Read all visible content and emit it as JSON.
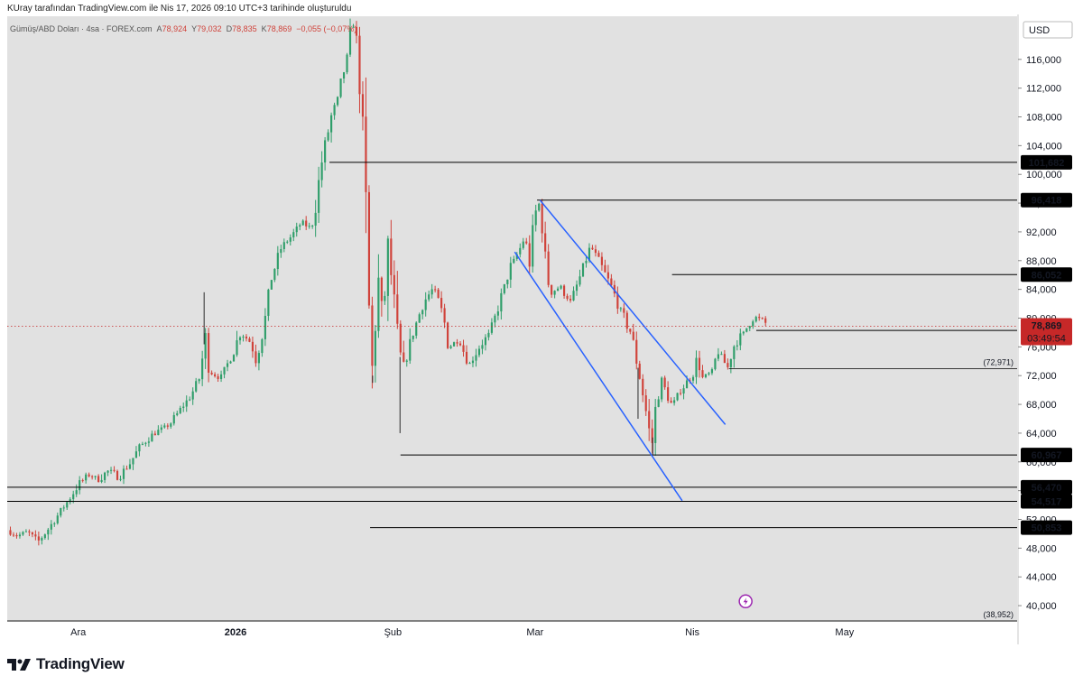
{
  "header": {
    "title": "KUray tarafından TradingView.com ile Nis 17, 2026 09:10 UTC+3 tarihinde oluşturuldu"
  },
  "legend": {
    "symbol": "Gümüş/ABD Doları · 4sa · FOREX.com",
    "open_label": "A",
    "open": "78,924",
    "high_label": "Y",
    "high": "79,032",
    "low_label": "D",
    "low": "78,835",
    "close_label": "K",
    "close": "78,869",
    "change": "−0,055 (−0,07%)"
  },
  "footer": {
    "brand": "TradingView"
  },
  "colors": {
    "background": "#e1e1e1",
    "up": "#2f9e6a",
    "down": "#d0423a",
    "channel": "#2962ff",
    "current_price": "#c62828",
    "level_line": "#000000"
  },
  "chart_data": {
    "type": "candlestick",
    "title": "Gümüş/ABD Doları · 4sa · FOREX.com",
    "currency": "USD",
    "ylim": [
      38,
      122
    ],
    "yticks": [
      40000,
      44000,
      48000,
      52000,
      56000,
      60000,
      64000,
      68000,
      72000,
      76000,
      80000,
      84000,
      88000,
      92000,
      96000,
      100000,
      104000,
      108000,
      112000,
      116000
    ],
    "ytick_labels": [
      "40,000",
      "44,000",
      "48,000",
      "52,000",
      "56,000",
      "60,000",
      "64,000",
      "68,000",
      "72,000",
      "76,000",
      "80,000",
      "84,000",
      "88,000",
      "92,000",
      "96,000",
      "100,000",
      "104,000",
      "108,000",
      "112,000",
      "116,000"
    ],
    "x_months": [
      {
        "label": "Ara",
        "day": 0
      },
      {
        "label": "2026",
        "day": 31,
        "bold": true
      },
      {
        "label": "Şub",
        "day": 62
      },
      {
        "label": "Mar",
        "day": 90
      },
      {
        "label": "Nis",
        "day": 121
      },
      {
        "label": "May",
        "day": 151
      }
    ],
    "x_range_days": [
      -14.0,
      185.0
    ],
    "last_day": 136.0,
    "price_path": [
      [
        -14,
        50.5
      ],
      [
        -12,
        49.7
      ],
      [
        -10,
        50.3
      ],
      [
        -8,
        48.8
      ],
      [
        -6,
        50.6
      ],
      [
        -4,
        52.6
      ],
      [
        -2,
        54.6
      ],
      [
        0,
        56.8
      ],
      [
        2,
        58.2
      ],
      [
        4,
        57.6
      ],
      [
        6,
        58.8
      ],
      [
        8,
        57.9
      ],
      [
        10,
        59.6
      ],
      [
        12,
        62.0
      ],
      [
        14,
        63.4
      ],
      [
        16,
        64.4
      ],
      [
        18,
        65.2
      ],
      [
        20,
        67.2
      ],
      [
        22,
        69.0
      ],
      [
        24,
        71.8
      ],
      [
        25,
        77.5
      ],
      [
        26,
        72.5
      ],
      [
        28,
        71.6
      ],
      [
        30,
        74.5
      ],
      [
        32,
        78.0
      ],
      [
        34,
        76.6
      ],
      [
        35,
        74.2
      ],
      [
        37,
        80.4
      ],
      [
        38,
        85.5
      ],
      [
        40,
        89.8
      ],
      [
        42,
        91.4
      ],
      [
        44,
        93.3
      ],
      [
        46,
        92.5
      ],
      [
        47,
        96.8
      ],
      [
        48,
        101.8
      ],
      [
        50,
        108.5
      ],
      [
        51,
        110.0
      ],
      [
        52,
        113.5
      ],
      [
        53,
        116.0
      ],
      [
        54,
        121.6
      ],
      [
        55,
        118.0
      ],
      [
        56,
        107.0
      ],
      [
        57,
        88.5
      ],
      [
        57.5,
        75.0
      ],
      [
        58,
        72.0
      ],
      [
        59,
        86.0
      ],
      [
        60,
        79.0
      ],
      [
        61,
        89.5
      ],
      [
        62,
        84.0
      ],
      [
        63,
        76.0
      ],
      [
        64,
        72.5
      ],
      [
        66,
        78.0
      ],
      [
        68,
        82.2
      ],
      [
        70,
        84.2
      ],
      [
        72,
        80.0
      ],
      [
        73,
        76.0
      ],
      [
        75,
        77.0
      ],
      [
        77,
        73.5
      ],
      [
        79,
        76.0
      ],
      [
        81,
        77.8
      ],
      [
        83,
        82.0
      ],
      [
        85,
        86.8
      ],
      [
        87,
        89.6
      ],
      [
        88,
        91.4
      ],
      [
        89,
        87.5
      ],
      [
        90,
        94.5
      ],
      [
        91,
        96.2
      ],
      [
        92,
        88.0
      ],
      [
        93,
        83.6
      ],
      [
        95,
        84.4
      ],
      [
        97,
        82.2
      ],
      [
        99,
        86.0
      ],
      [
        101,
        90.0
      ],
      [
        103,
        87.2
      ],
      [
        105,
        84.4
      ],
      [
        107,
        80.8
      ],
      [
        109,
        77.8
      ],
      [
        110,
        74.2
      ],
      [
        111,
        70.5
      ],
      [
        112,
        66.5
      ],
      [
        113,
        62.0
      ],
      [
        114,
        69.0
      ],
      [
        115,
        71.0
      ],
      [
        117,
        67.8
      ],
      [
        119,
        70.3
      ],
      [
        121,
        72.0
      ],
      [
        122,
        74.4
      ],
      [
        123,
        71.6
      ],
      [
        125,
        72.6
      ],
      [
        126,
        75.6
      ],
      [
        127,
        74.2
      ],
      [
        128,
        73.1
      ],
      [
        129,
        76.0
      ],
      [
        131,
        77.8
      ],
      [
        133,
        80.2
      ],
      [
        135,
        79.6
      ],
      [
        136,
        78.869
      ]
    ],
    "extremes": [
      {
        "day": 54,
        "value": 121.6
      },
      {
        "day": 63.4,
        "value": 64.0
      },
      {
        "day": 58,
        "value": 71.0
      },
      {
        "day": 24.8,
        "value": 83.6
      },
      {
        "day": 113.2,
        "value": 60.967
      },
      {
        "day": 110.3,
        "value": 66.0
      }
    ],
    "levels": [
      {
        "value": 101.682,
        "label": "101,682",
        "from_day": 49.5
      },
      {
        "value": 96.418,
        "label": "96,418",
        "from_day": 90.4
      },
      {
        "value": 86.052,
        "label": "86,052",
        "from_day": 117.0
      },
      {
        "value": 78.296,
        "label": "78,296",
        "from_day": 133.6
      },
      {
        "value": 72.971,
        "label": "(72,971)",
        "from_day": 128.2,
        "thin": true
      },
      {
        "value": 60.967,
        "label": "60,967",
        "from_day": 63.5
      },
      {
        "value": 56.47,
        "label": "56,470",
        "from_day": -14
      },
      {
        "value": 54.517,
        "label": "54,517",
        "from_day": -14
      },
      {
        "value": 50.853,
        "label": "50,853",
        "from_day": 57.5
      }
    ],
    "low_marker": {
      "value": 38.952,
      "label": "(38,952)"
    },
    "current_price": {
      "value": 78.869,
      "label": "78,869",
      "countdown": "03:49:54"
    },
    "channel": {
      "upper": [
        [
          91.0,
          96.4
        ],
        [
          127.5,
          65.2
        ]
      ],
      "lower": [
        [
          86.0,
          89.2
        ],
        [
          119.0,
          54.6
        ]
      ]
    },
    "lightning_marker": {
      "day": 131.5,
      "value": 40.6
    }
  }
}
